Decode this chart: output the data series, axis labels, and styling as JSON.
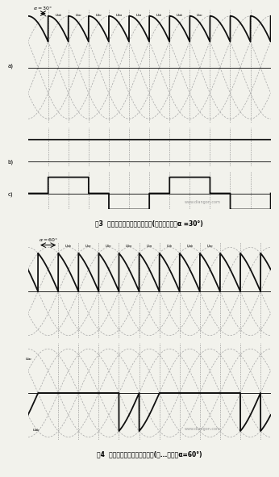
{
  "title1": "图3  三相桥式全控整流电路波形(电感性负载，α =30°)",
  "title2": "图4  三相桥式全控整流电路波形(电...负载，α=60°)",
  "alpha1_deg": 30,
  "alpha2_deg": 60,
  "bg_color": "#f2f2ec",
  "dashed_color": "#aaaaaa",
  "solid_color": "#111111",
  "watermark1": "www.diangon.com",
  "watermark2": "www.diangon.com"
}
